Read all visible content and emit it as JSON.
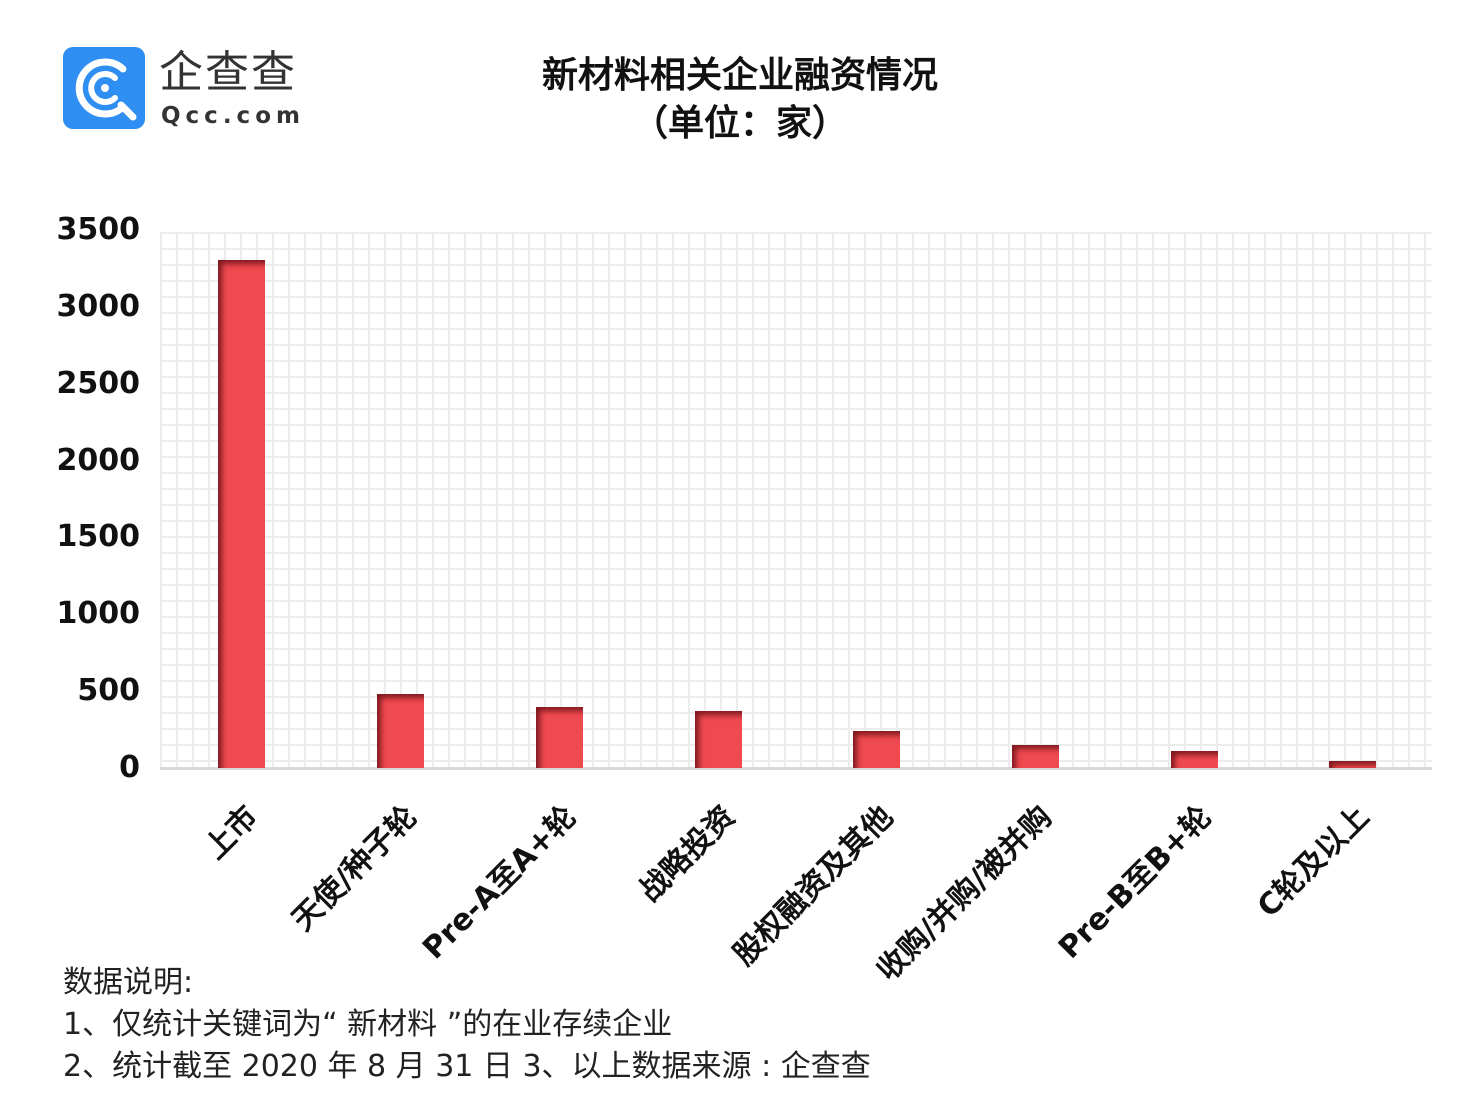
{
  "logo": {
    "cn_text": "企查查",
    "en_text": "Qcc.com",
    "badge_color": "#2f8ef1"
  },
  "title": {
    "line1": "新材料相关企业融资情况",
    "line2": "（单位：家）"
  },
  "y_axis": {
    "ticks": [
      "3500",
      "3000",
      "2500",
      "2000",
      "1500",
      "1000",
      "500",
      "0"
    ]
  },
  "x_axis": {
    "labels": [
      "上市",
      "天使/种子轮",
      "Pre-A至A+轮",
      "战略投资",
      "股权融资及其他",
      "收购/并购/被并购",
      "Pre-B至B+轮",
      "C轮及以上"
    ]
  },
  "notes": {
    "heading": "数据说明:",
    "line1": "1、仅统计关键词为“ 新材料 ”的在业存续企业",
    "line2": "2、统计截至 2020 年 8 月 31 日  3、以上数据来源 : 企查查"
  },
  "colors": {
    "bar": "#ef4a50",
    "grid": "#ececec",
    "axis": "#d9d9d9"
  },
  "chart_data": {
    "type": "bar",
    "title": "新材料相关企业融资情况（单位：家）",
    "xlabel": "",
    "ylabel": "",
    "categories": [
      "上市",
      "天使/种子轮",
      "Pre-A至A+轮",
      "战略投资",
      "股权融资及其他",
      "收购/并购/被并购",
      "Pre-B至B+轮",
      "C轮及以上"
    ],
    "values": [
      3305,
      481,
      397,
      371,
      241,
      150,
      110,
      46
    ],
    "ylim": [
      0,
      3500
    ],
    "yticks": [
      0,
      500,
      1000,
      1500,
      2000,
      2500,
      3000,
      3500
    ],
    "grid": true,
    "legend": null
  }
}
